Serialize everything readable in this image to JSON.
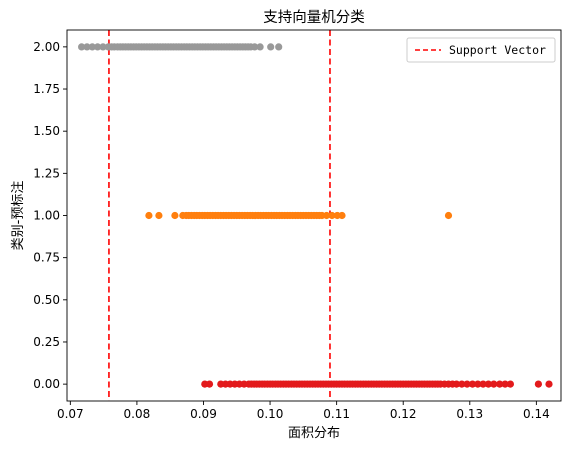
{
  "chart_data": {
    "type": "scatter",
    "title": "支持向量机分类",
    "xlabel": "面积分布",
    "ylabel": "类别-预标注",
    "xlim": [
      0.0695,
      0.1437
    ],
    "ylim": [
      -0.1,
      2.1
    ],
    "xticks": [
      0.07,
      0.08,
      0.09,
      0.1,
      0.11,
      0.12,
      0.13,
      0.14
    ],
    "xtick_labels": [
      "0.07",
      "0.08",
      "0.09",
      "0.10",
      "0.11",
      "0.12",
      "0.13",
      "0.14"
    ],
    "yticks": [
      0.0,
      0.25,
      0.5,
      0.75,
      1.0,
      1.25,
      1.5,
      1.75,
      2.0
    ],
    "ytick_labels": [
      "0.00",
      "0.25",
      "0.50",
      "0.75",
      "1.00",
      "1.25",
      "1.50",
      "1.75",
      "2.00"
    ],
    "grid": false,
    "legend_position": "top-right",
    "series": [
      {
        "color": "#999999",
        "y": 2.0,
        "x": [
          0.0717,
          0.0725,
          0.0733,
          0.0741,
          0.0749,
          0.0757,
          0.0762,
          0.0766,
          0.0771,
          0.0775,
          0.0779,
          0.0783,
          0.0787,
          0.0791,
          0.0795,
          0.0799,
          0.0803,
          0.0807,
          0.0811,
          0.0815,
          0.0819,
          0.0823,
          0.0827,
          0.0831,
          0.0835,
          0.0839,
          0.0843,
          0.0847,
          0.0851,
          0.0855,
          0.0859,
          0.0863,
          0.0867,
          0.0871,
          0.0875,
          0.0879,
          0.0883,
          0.0887,
          0.0891,
          0.0895,
          0.0899,
          0.0903,
          0.0907,
          0.0911,
          0.0915,
          0.0919,
          0.0923,
          0.0927,
          0.0931,
          0.0935,
          0.0939,
          0.0943,
          0.0947,
          0.0951,
          0.0955,
          0.0959,
          0.0963,
          0.0967,
          0.0971,
          0.0977,
          0.0985,
          0.1001,
          0.1013
        ]
      },
      {
        "color": "#ff7f0e",
        "y": 1.0,
        "x": [
          0.0818,
          0.0833,
          0.0857,
          0.0869,
          0.0874,
          0.0878,
          0.0882,
          0.0886,
          0.089,
          0.0894,
          0.0898,
          0.0902,
          0.0906,
          0.091,
          0.0914,
          0.0918,
          0.0922,
          0.0926,
          0.093,
          0.0934,
          0.0938,
          0.0942,
          0.0946,
          0.095,
          0.0954,
          0.0958,
          0.0962,
          0.0966,
          0.097,
          0.0974,
          0.0978,
          0.0982,
          0.0986,
          0.099,
          0.0994,
          0.0998,
          0.1002,
          0.1006,
          0.101,
          0.1014,
          0.1018,
          0.1022,
          0.1026,
          0.103,
          0.1034,
          0.1038,
          0.1042,
          0.1046,
          0.105,
          0.1054,
          0.1058,
          0.1062,
          0.1066,
          0.107,
          0.1074,
          0.1078,
          0.1085,
          0.1093,
          0.1101,
          0.1108,
          0.1268
        ]
      },
      {
        "color": "#e31a1c",
        "y": 0.0,
        "x": [
          0.0902,
          0.0909,
          0.0926,
          0.0933,
          0.094,
          0.0947,
          0.0954,
          0.0961,
          0.0968,
          0.0972,
          0.0976,
          0.098,
          0.0984,
          0.0988,
          0.0992,
          0.0996,
          0.1,
          0.1004,
          0.1008,
          0.1012,
          0.1016,
          0.102,
          0.1024,
          0.1028,
          0.1032,
          0.1036,
          0.104,
          0.1044,
          0.1048,
          0.1052,
          0.1056,
          0.106,
          0.1064,
          0.1068,
          0.1072,
          0.1076,
          0.108,
          0.1084,
          0.1088,
          0.1092,
          0.1096,
          0.11,
          0.1104,
          0.1108,
          0.1112,
          0.1116,
          0.112,
          0.1124,
          0.1128,
          0.1132,
          0.1136,
          0.114,
          0.1144,
          0.1148,
          0.1152,
          0.1156,
          0.116,
          0.1164,
          0.1168,
          0.1172,
          0.1176,
          0.118,
          0.1184,
          0.1188,
          0.1192,
          0.1196,
          0.12,
          0.1204,
          0.1208,
          0.1212,
          0.1216,
          0.122,
          0.1224,
          0.1228,
          0.1232,
          0.1236,
          0.124,
          0.1244,
          0.1248,
          0.1252,
          0.1256,
          0.1262,
          0.1268,
          0.1274,
          0.128,
          0.1288,
          0.1296,
          0.1304,
          0.1312,
          0.132,
          0.1328,
          0.1336,
          0.1345,
          0.1353,
          0.1361,
          0.1403,
          0.1419
        ]
      }
    ],
    "support_vectors": {
      "label": "Support Vector",
      "color": "#ff0000",
      "style": "dashed",
      "x": [
        0.0758,
        0.109
      ]
    }
  }
}
